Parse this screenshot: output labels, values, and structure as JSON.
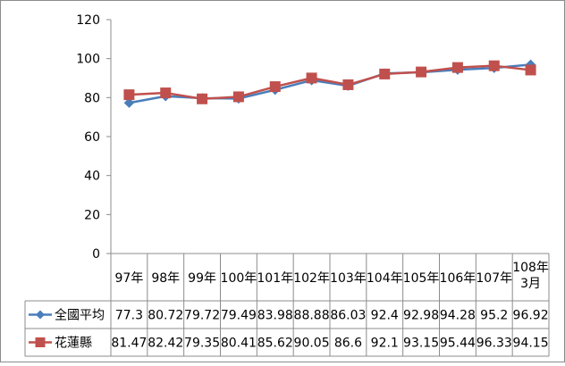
{
  "chart_data": {
    "type": "line",
    "categories": [
      "97年",
      "98年",
      "99年",
      "100年",
      "101年",
      "102年",
      "103年",
      "104年",
      "105年",
      "106年",
      "107年",
      "108年\n3月"
    ],
    "series": [
      {
        "name": "全國平均",
        "values": [
          77.3,
          80.72,
          79.72,
          79.49,
          83.98,
          88.88,
          86.03,
          92.4,
          92.98,
          94.28,
          95.2,
          96.92
        ],
        "value_labels": [
          "77.3",
          "80.72",
          "79.72",
          "79.49",
          "83.98",
          "88.88",
          "86.03",
          "92.4",
          "92.98",
          "94.28",
          "95.2",
          "96.92"
        ],
        "color": "#4a7ebb",
        "marker": "diamond"
      },
      {
        "name": "花蓮縣",
        "values": [
          81.47,
          82.42,
          79.35,
          80.41,
          85.62,
          90.05,
          86.6,
          92.1,
          93.15,
          95.44,
          96.33,
          94.15
        ],
        "value_labels": [
          "81.47",
          "82.42",
          "79.35",
          "80.41",
          "85.62",
          "90.05",
          "86.6",
          "92.1",
          "93.15",
          "95.44",
          "96.33",
          "94.15"
        ],
        "color": "#c0504d",
        "marker": "square"
      }
    ],
    "ylim": [
      0,
      120
    ],
    "yticks": [
      0,
      20,
      40,
      60,
      80,
      100,
      120
    ],
    "data_table": true,
    "grid": false
  }
}
